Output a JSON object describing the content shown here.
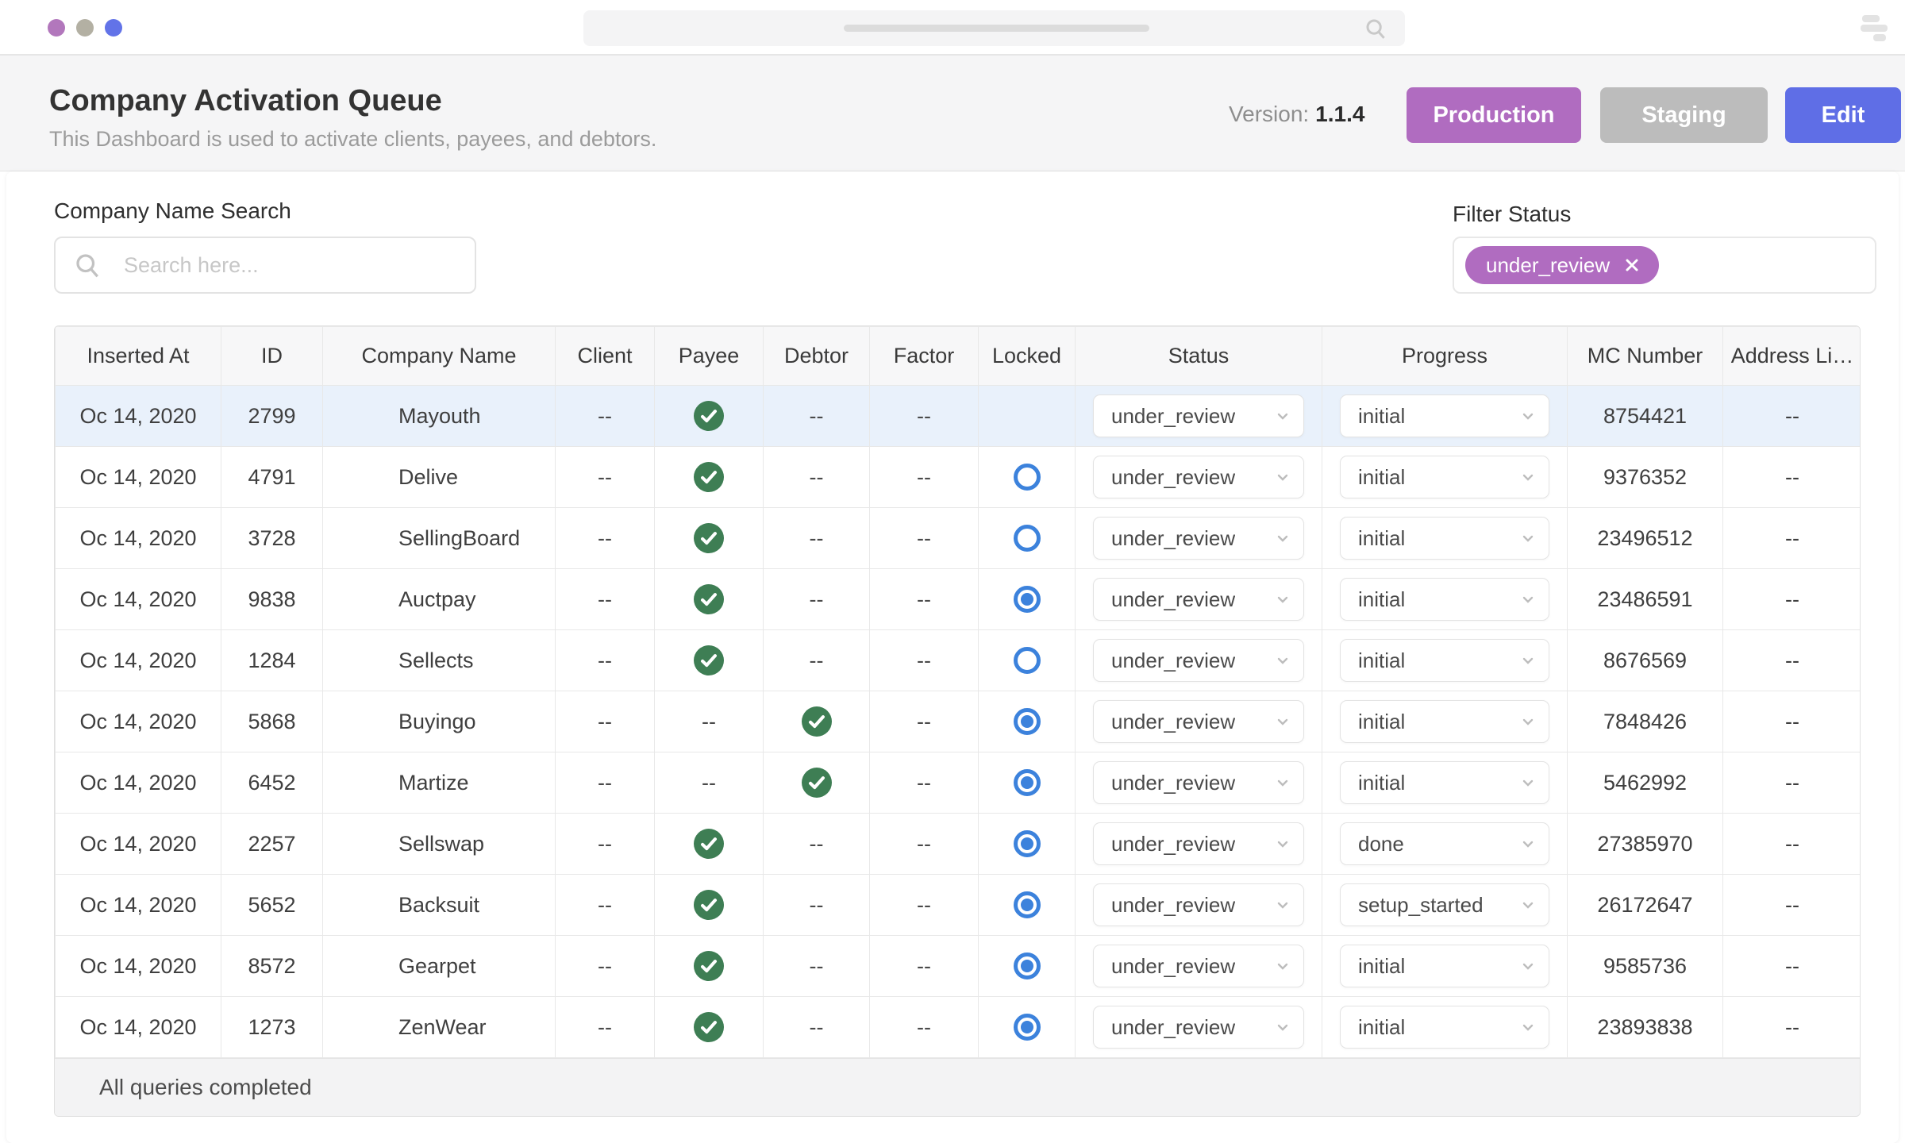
{
  "chrome": {
    "window_dots": [
      {
        "name": "window-dot-purple",
        "color": "#b277bc"
      },
      {
        "name": "window-dot-beige",
        "color": "#b3b0a3"
      },
      {
        "name": "window-dot-blue",
        "color": "#6273e8"
      }
    ]
  },
  "header": {
    "title": "Company Activation Queue",
    "subtitle": "This Dashboard is used to activate clients, payees, and debtors.",
    "version_label": "Version:",
    "version_value": "1.1.4",
    "buttons": [
      {
        "label": "Production",
        "color": "#b06cc0"
      },
      {
        "label": "Staging",
        "color": "#bcbcbc"
      },
      {
        "label": "Edit",
        "color": "#5f6ee6"
      }
    ]
  },
  "filters": {
    "search_label": "Company Name Search",
    "search_placeholder": "Search here...",
    "status_label": "Filter Status",
    "status_chip": "under_review"
  },
  "table": {
    "columns": [
      "Inserted At",
      "ID",
      "Company Name",
      "Client",
      "Payee",
      "Debtor",
      "Factor",
      "Locked",
      "Status",
      "Progress",
      "MC Number",
      "Address Li…"
    ],
    "rows": [
      {
        "inserted_at": "Oc 14, 2020",
        "id": "2799",
        "company": "Mayouth",
        "client": "--",
        "payee": "check",
        "debtor": "--",
        "factor": "--",
        "locked": "none",
        "status": "under_review",
        "progress": "initial",
        "mc_number": "8754421",
        "address": "--",
        "highlighted": true
      },
      {
        "inserted_at": "Oc 14, 2020",
        "id": "4791",
        "company": "Delive",
        "client": "--",
        "payee": "check",
        "debtor": "--",
        "factor": "--",
        "locked": "open",
        "status": "under_review",
        "progress": "initial",
        "mc_number": "9376352",
        "address": "--",
        "highlighted": false
      },
      {
        "inserted_at": "Oc 14, 2020",
        "id": "3728",
        "company": "SellingBoard",
        "client": "--",
        "payee": "check",
        "debtor": "--",
        "factor": "--",
        "locked": "open",
        "status": "under_review",
        "progress": "initial",
        "mc_number": "23496512",
        "address": "--",
        "highlighted": false
      },
      {
        "inserted_at": "Oc 14, 2020",
        "id": "9838",
        "company": "Auctpay",
        "client": "--",
        "payee": "check",
        "debtor": "--",
        "factor": "--",
        "locked": "filled",
        "status": "under_review",
        "progress": "initial",
        "mc_number": "23486591",
        "address": "--",
        "highlighted": false
      },
      {
        "inserted_at": "Oc 14, 2020",
        "id": "1284",
        "company": "Sellects",
        "client": "--",
        "payee": "check",
        "debtor": "--",
        "factor": "--",
        "locked": "open",
        "status": "under_review",
        "progress": "initial",
        "mc_number": "8676569",
        "address": "--",
        "highlighted": false
      },
      {
        "inserted_at": "Oc 14, 2020",
        "id": "5868",
        "company": "Buyingo",
        "client": "--",
        "payee": "--",
        "debtor": "check",
        "factor": "--",
        "locked": "filled",
        "status": "under_review",
        "progress": "initial",
        "mc_number": "7848426",
        "address": "--",
        "highlighted": false
      },
      {
        "inserted_at": "Oc 14, 2020",
        "id": "6452",
        "company": "Martize",
        "client": "--",
        "payee": "--",
        "debtor": "check",
        "factor": "--",
        "locked": "filled",
        "status": "under_review",
        "progress": "initial",
        "mc_number": "5462992",
        "address": "--",
        "highlighted": false
      },
      {
        "inserted_at": "Oc 14, 2020",
        "id": "2257",
        "company": "Sellswap",
        "client": "--",
        "payee": "check",
        "debtor": "--",
        "factor": "--",
        "locked": "filled",
        "status": "under_review",
        "progress": "done",
        "mc_number": "27385970",
        "address": "--",
        "highlighted": false
      },
      {
        "inserted_at": "Oc 14, 2020",
        "id": "5652",
        "company": "Backsuit",
        "client": "--",
        "payee": "check",
        "debtor": "--",
        "factor": "--",
        "locked": "filled",
        "status": "under_review",
        "progress": "setup_started",
        "mc_number": "26172647",
        "address": "--",
        "highlighted": false
      },
      {
        "inserted_at": "Oc 14, 2020",
        "id": "8572",
        "company": "Gearpet",
        "client": "--",
        "payee": "check",
        "debtor": "--",
        "factor": "--",
        "locked": "filled",
        "status": "under_review",
        "progress": "initial",
        "mc_number": "9585736",
        "address": "--",
        "highlighted": false
      },
      {
        "inserted_at": "Oc 14, 2020",
        "id": "1273",
        "company": "ZenWear",
        "client": "--",
        "payee": "check",
        "debtor": "--",
        "factor": "--",
        "locked": "filled",
        "status": "under_review",
        "progress": "initial",
        "mc_number": "23893838",
        "address": "--",
        "highlighted": false
      }
    ],
    "footer": "All queries completed"
  },
  "icons": {
    "search": "magnifier glass",
    "menu": "three horizontal bars",
    "chevron_down": "small v arrow on dropdowns",
    "check_circle": "green circle with white check",
    "radio_open": "blue ring",
    "radio_filled": "blue ring with blue dot",
    "close_x": "white x in filter chip"
  },
  "colors": {
    "accent_purple": "#b06cc0",
    "accent_gray": "#bcbcbc",
    "accent_indigo": "#5f6ee6",
    "success_green": "#3e7e54",
    "radio_blue": "#3c82dc",
    "row_highlight": "#e9f1fb",
    "header_band": "#f5f5f6",
    "table_header_bg": "#f7f7f8",
    "footer_bg": "#f3f3f4"
  }
}
